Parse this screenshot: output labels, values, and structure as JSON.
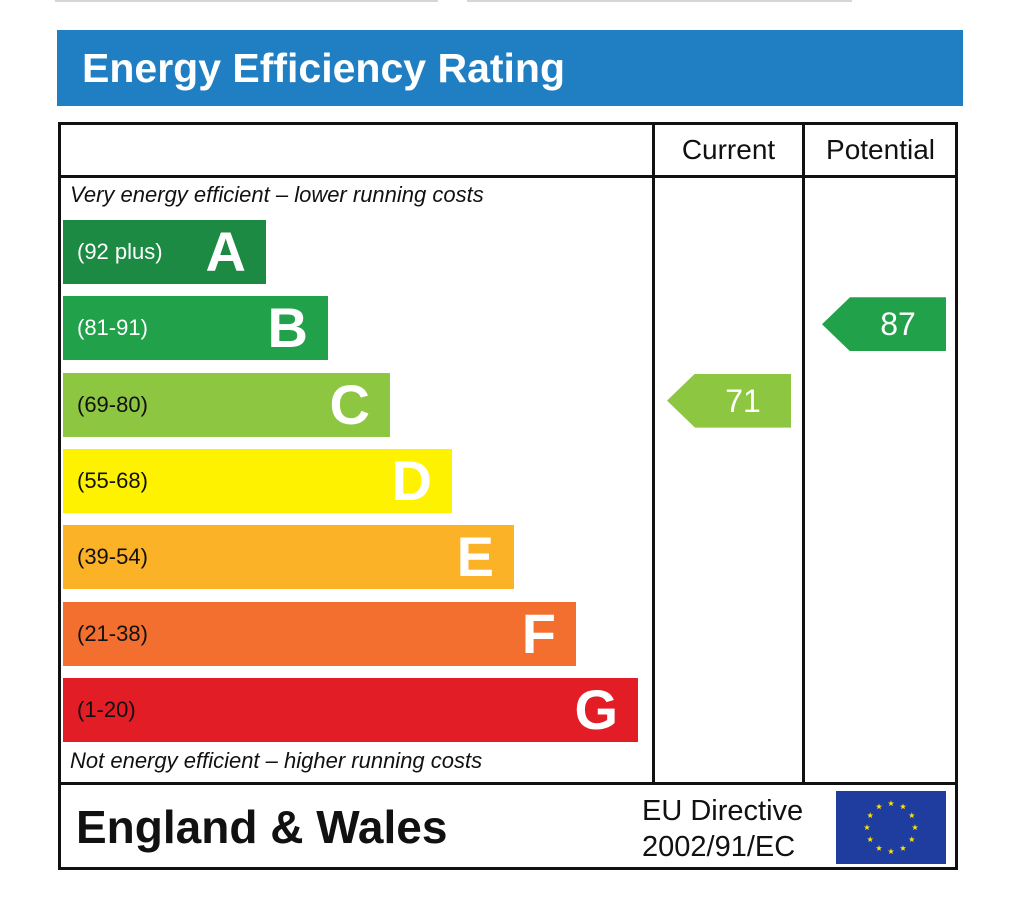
{
  "title": "Energy Efficiency Rating",
  "columns": {
    "current": "Current",
    "potential": "Potential"
  },
  "top_note": "Very energy efficient – lower running costs",
  "bottom_note": "Not energy efficient – higher running costs",
  "region": "England & Wales",
  "directive": {
    "line1": "EU Directive",
    "line2": "2002/91/EC"
  },
  "colors": {
    "A": "#1c8a43",
    "B": "#21a14a",
    "C": "#8dc641",
    "D": "#fff200",
    "E": "#fbb227",
    "F": "#f26f2f",
    "G": "#e31d26",
    "header": "#1f7fc2",
    "flag": "#1f3d9e",
    "flag_stars": "#ffe000"
  },
  "chart_data": {
    "type": "bar",
    "title": "Energy Efficiency Rating",
    "bands": [
      {
        "letter": "A",
        "range": "(92 plus)",
        "min": 92,
        "max": 100
      },
      {
        "letter": "B",
        "range": "(81-91)",
        "min": 81,
        "max": 91
      },
      {
        "letter": "C",
        "range": "(69-80)",
        "min": 69,
        "max": 80
      },
      {
        "letter": "D",
        "range": "(55-68)",
        "min": 55,
        "max": 68
      },
      {
        "letter": "E",
        "range": "(39-54)",
        "min": 39,
        "max": 54
      },
      {
        "letter": "F",
        "range": "(21-38)",
        "min": 21,
        "max": 38
      },
      {
        "letter": "G",
        "range": "(1-20)",
        "min": 1,
        "max": 20
      }
    ],
    "ratings": [
      {
        "column": "Current",
        "value": 71,
        "band": "C"
      },
      {
        "column": "Potential",
        "value": 87,
        "band": "B"
      }
    ]
  }
}
